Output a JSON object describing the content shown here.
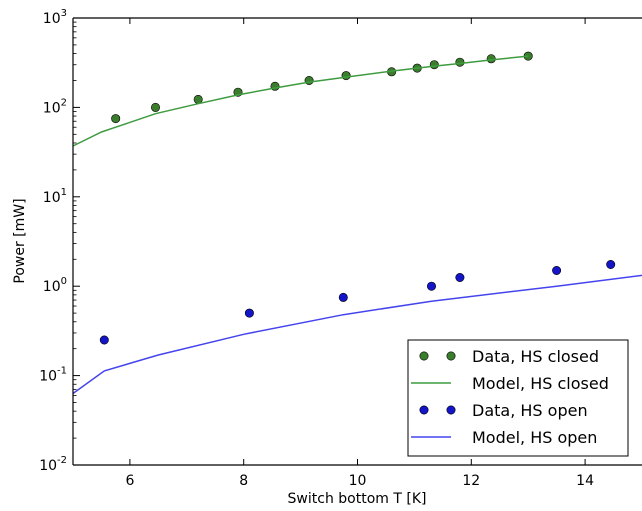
{
  "chart_data": {
    "type": "scatter",
    "xlabel": "Switch bottom T [K]",
    "ylabel": "Power [mW]",
    "xlim": [
      5,
      15
    ],
    "ylim": [
      0.01,
      1000
    ],
    "y_scale": "log",
    "x_ticks": [
      6,
      8,
      10,
      12,
      14
    ],
    "y_ticks": [
      {
        "value": 0.01,
        "base": "10",
        "exp": "-2"
      },
      {
        "value": 0.1,
        "base": "10",
        "exp": "-1"
      },
      {
        "value": 1,
        "base": "10",
        "exp": "0"
      },
      {
        "value": 10,
        "base": "10",
        "exp": "1"
      },
      {
        "value": 100,
        "base": "10",
        "exp": "2"
      },
      {
        "value": 1000,
        "base": "10",
        "exp": "3"
      }
    ],
    "grid": false,
    "legend_position": "lower-right",
    "series": [
      {
        "name": "Data, HS closed",
        "kind": "markers",
        "color": "#3a7d2c",
        "x": [
          5.75,
          6.45,
          7.2,
          7.9,
          8.55,
          9.15,
          9.8,
          10.6,
          11.05,
          11.35,
          11.8,
          12.35,
          13.0
        ],
        "y": [
          75,
          100,
          123,
          148,
          172,
          200,
          227,
          250,
          275,
          300,
          320,
          350,
          375
        ]
      },
      {
        "name": "Model, HS closed",
        "kind": "line",
        "color": "#3f9b3f",
        "x": [
          5.0,
          5.5,
          5.75,
          6.45,
          7.2,
          7.9,
          8.55,
          9.15,
          9.8,
          10.6,
          11.05,
          11.35,
          11.8,
          12.35,
          13.0
        ],
        "y": [
          37,
          53,
          60,
          85,
          110,
          138,
          165,
          192,
          218,
          255,
          275,
          290,
          310,
          340,
          375
        ]
      },
      {
        "name": "Data, HS open",
        "kind": "markers",
        "color": "#1414c8",
        "x": [
          5.55,
          8.1,
          9.75,
          11.3,
          11.8,
          13.5,
          14.45
        ],
        "y": [
          0.25,
          0.5,
          0.75,
          1.0,
          1.25,
          1.5,
          1.75
        ]
      },
      {
        "name": "Model, HS open",
        "kind": "line",
        "color": "#4444ee",
        "x": [
          5.0,
          5.55,
          6.5,
          8.0,
          9.75,
          11.3,
          13.5,
          15.0
        ],
        "y": [
          0.063,
          0.113,
          0.17,
          0.29,
          0.48,
          0.68,
          1.0,
          1.32
        ]
      }
    ]
  }
}
